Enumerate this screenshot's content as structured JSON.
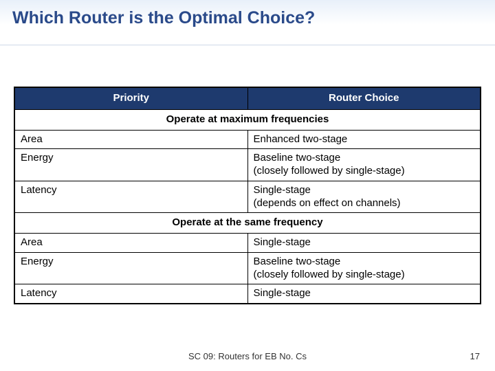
{
  "slide": {
    "title": "Which Router is the Optimal Choice?",
    "footer": "SC 09: Routers for EB No. Cs",
    "page_number": "17"
  },
  "table": {
    "headers": {
      "col1": "Priority",
      "col2": "Router Choice"
    },
    "section1": "Operate at maximum frequencies",
    "rows1": [
      {
        "priority": "Area",
        "choice": "Enhanced two-stage"
      },
      {
        "priority": "Energy",
        "choice": "Baseline two-stage\n(closely followed by single-stage)"
      },
      {
        "priority": "Latency",
        "choice": "Single-stage\n(depends on effect on channels)"
      }
    ],
    "section2": "Operate at the same frequency",
    "rows2": [
      {
        "priority": "Area",
        "choice": "Single-stage"
      },
      {
        "priority": "Energy",
        "choice": "Baseline two-stage\n(closely followed by single-stage)"
      },
      {
        "priority": "Latency",
        "choice": "Single-stage"
      }
    ]
  },
  "colors": {
    "title_color": "#2a4a8a",
    "header_bg": "#1e3a6e",
    "header_text": "#ffffff",
    "border": "#000000",
    "band_top": "#e8f0fa"
  }
}
